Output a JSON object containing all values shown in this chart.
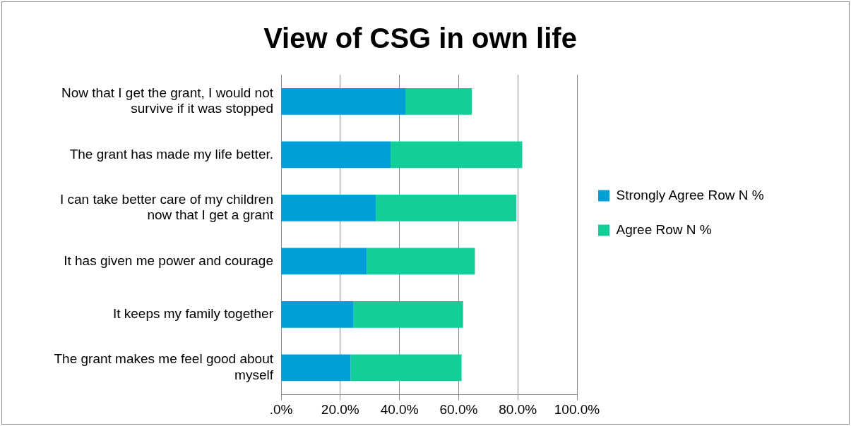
{
  "chart_data": {
    "type": "bar",
    "orientation": "horizontal",
    "stacked": true,
    "title": "View of CSG in own life",
    "categories": [
      "Now that I get the grant, I would not survive if it was stopped",
      "The grant has made my life better.",
      "I can take better care of my children now that I get a grant",
      "It has given me power and courage",
      "It keeps my family together",
      "The grant makes me feel good about myself"
    ],
    "series": [
      {
        "name": "Strongly Agree Row N %",
        "color": "#009fd9",
        "values": [
          42,
          37,
          32,
          29,
          24.5,
          23.5
        ]
      },
      {
        "name": "Agree Row N %",
        "color": "#12cf9a",
        "values": [
          22.5,
          44.5,
          47.5,
          36.5,
          37,
          37.5
        ]
      }
    ],
    "xlim": [
      0,
      100
    ],
    "xticks": [
      {
        "value": 0,
        "label": ".0%"
      },
      {
        "value": 20,
        "label": "20.0%"
      },
      {
        "value": 40,
        "label": "40.0%"
      },
      {
        "value": 60,
        "label": "60.0%"
      },
      {
        "value": 80,
        "label": "80.0%"
      },
      {
        "value": 100,
        "label": "100.0%"
      }
    ],
    "grid": "x",
    "legend": "right"
  }
}
